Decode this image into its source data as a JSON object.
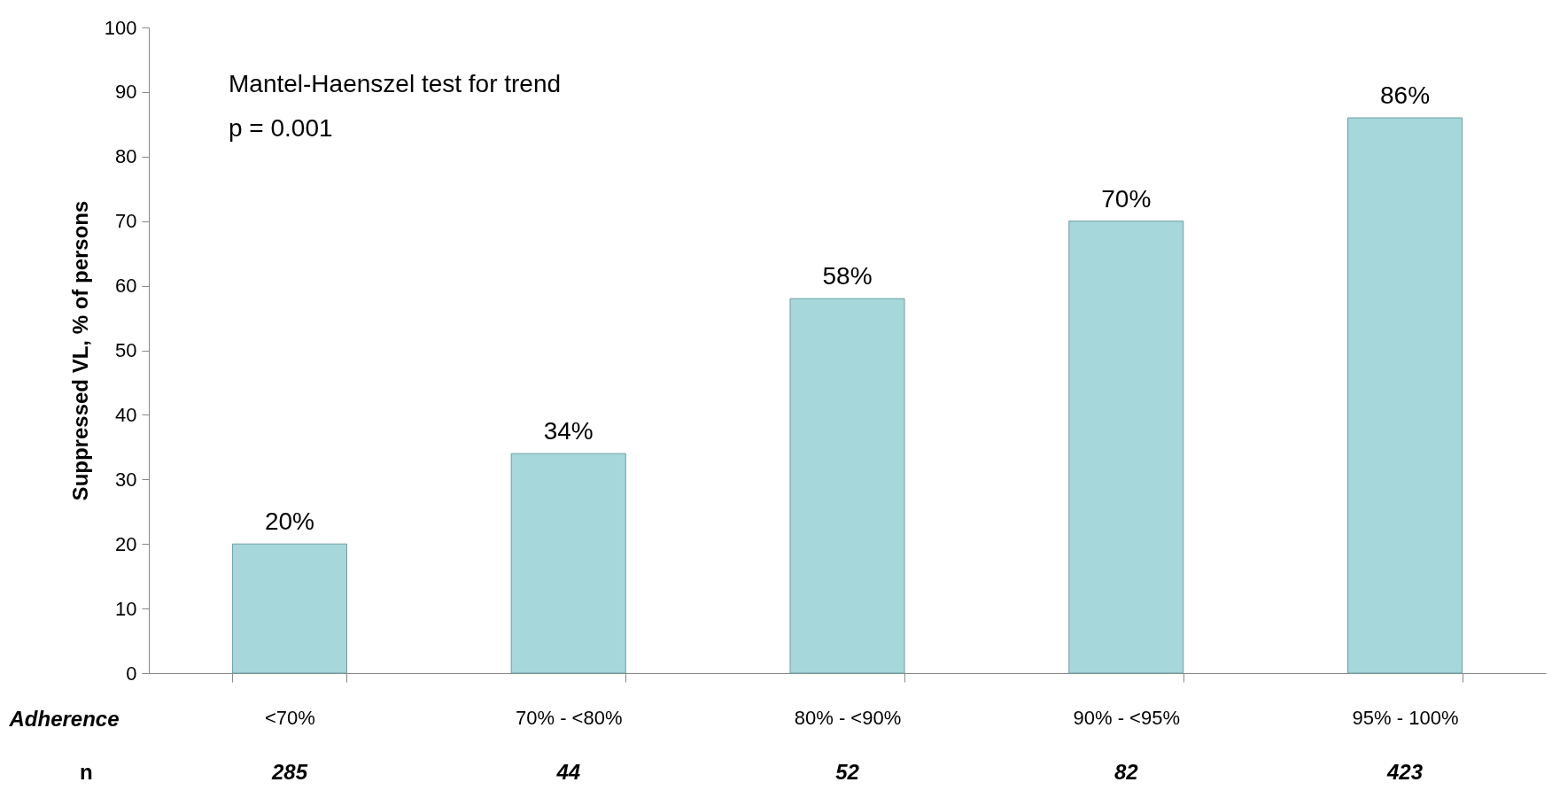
{
  "chart_data": {
    "type": "bar",
    "categories": [
      "<70%",
      "70% - <80%",
      "80% - <90%",
      "90% - <95%",
      "95% - 100%"
    ],
    "values": [
      20,
      34,
      58,
      70,
      86
    ],
    "value_labels": [
      "20%",
      "34%",
      "58%",
      "70%",
      "86%"
    ],
    "color": "#a6d8db",
    "xlabel": "Adherence",
    "ylabel": "Suppressed VL, % of persons",
    "ylim": [
      0,
      100
    ],
    "yticks": [
      0,
      10,
      20,
      30,
      40,
      50,
      60,
      70,
      80,
      90,
      100
    ],
    "grid": false,
    "annotations": [
      "Mantel-Haenszel  test for trend",
      "p = 0.001",
      "n",
      "285",
      "44",
      "52",
      "82",
      "423"
    ]
  }
}
